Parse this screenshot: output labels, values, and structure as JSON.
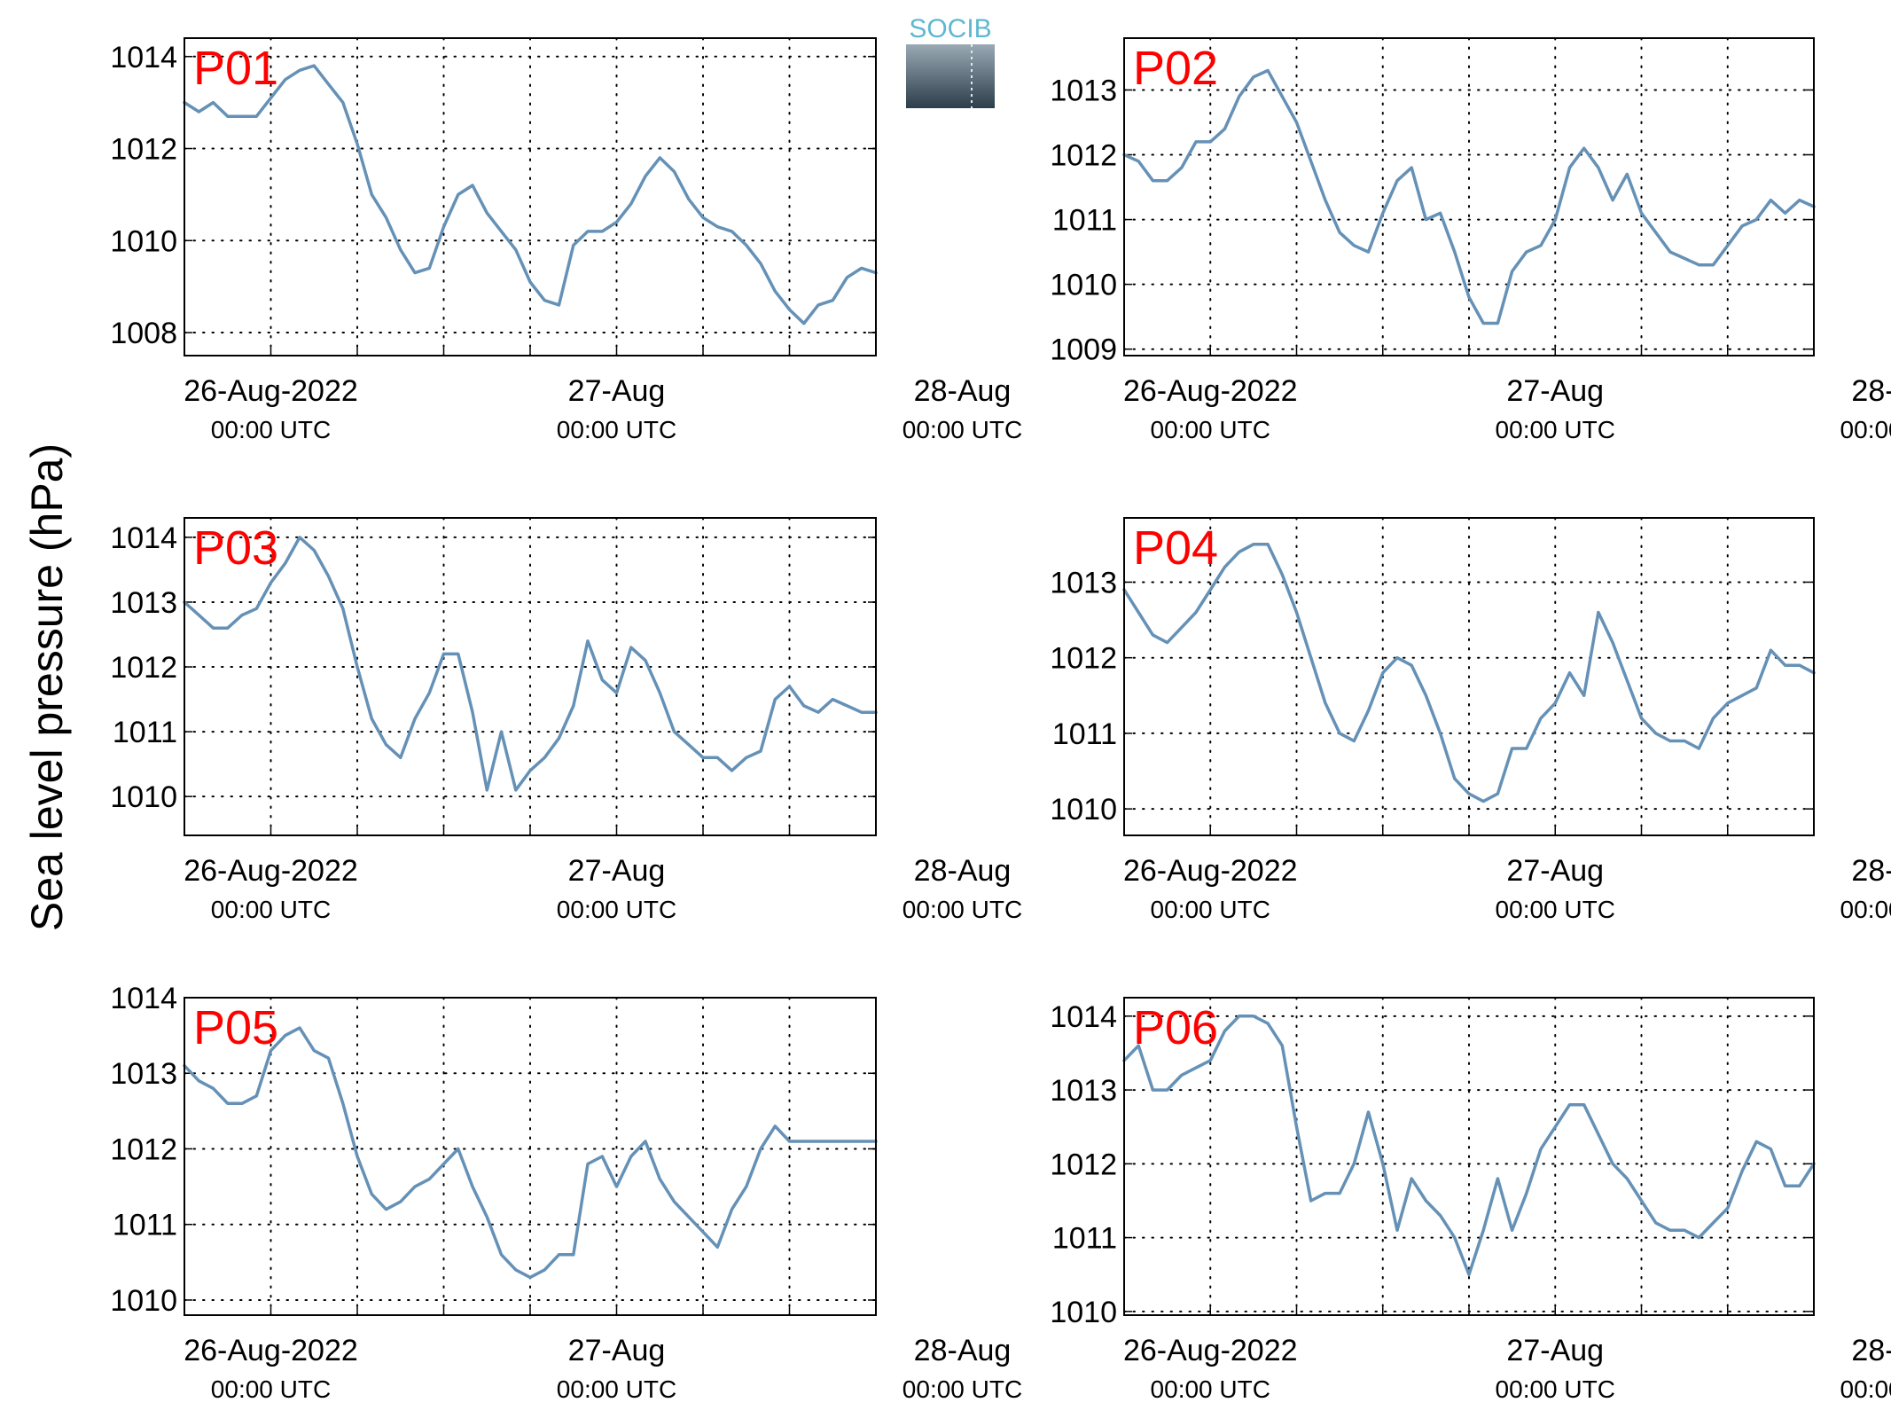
{
  "ylabel": "Sea level pressure (hPa)",
  "logo": {
    "text": "SOCIB",
    "text_color": "#5fb8d0"
  },
  "colors": {
    "line": "#6591b6",
    "panel_label": "#ff0000",
    "axis": "#000000",
    "grid": "#000000"
  },
  "x_ticks": {
    "major": [
      {
        "date": "26-Aug-2022",
        "time": "00:00 UTC"
      },
      {
        "date": "27-Aug",
        "time": "00:00 UTC"
      },
      {
        "date": "28-Aug",
        "time": "00:00 UTC"
      }
    ]
  },
  "chart_data": [
    {
      "type": "line",
      "name": "P01",
      "grid": "on",
      "ylim": [
        1007.5,
        1014.4
      ],
      "yticks": [
        1008,
        1010,
        1012,
        1014
      ],
      "x_units": "hours since 26-Aug-2022 00:00 UTC",
      "xlim": [
        -6,
        42
      ],
      "series": [
        {
          "x": [
            -6,
            -5,
            -4,
            -3,
            -2,
            -1,
            0,
            1,
            2,
            3,
            4,
            5,
            6,
            7,
            8,
            9,
            10,
            11,
            12,
            13,
            14,
            15,
            16,
            17,
            18,
            19,
            20,
            21,
            22,
            23,
            24,
            25,
            26,
            27,
            28,
            29,
            30,
            31,
            32,
            33,
            34,
            35,
            36,
            37,
            38,
            39,
            40,
            41,
            42
          ],
          "y": [
            1013.0,
            1012.8,
            1013.0,
            1012.7,
            1012.7,
            1012.7,
            1013.1,
            1013.5,
            1013.7,
            1013.8,
            1013.4,
            1013.0,
            1012.1,
            1011.0,
            1010.5,
            1009.8,
            1009.3,
            1009.4,
            1010.3,
            1011.0,
            1011.2,
            1010.6,
            1010.2,
            1009.8,
            1009.1,
            1008.7,
            1008.6,
            1009.9,
            1010.2,
            1010.2,
            1010.4,
            1010.8,
            1011.4,
            1011.8,
            1011.5,
            1010.9,
            1010.5,
            1010.3,
            1010.2,
            1009.9,
            1009.5,
            1008.9,
            1008.5,
            1008.2,
            1008.6,
            1008.7,
            1009.2,
            1009.4,
            1009.3
          ]
        }
      ]
    },
    {
      "type": "line",
      "name": "P02",
      "grid": "on",
      "ylim": [
        1008.9,
        1013.8
      ],
      "yticks": [
        1009,
        1010,
        1011,
        1012,
        1013
      ],
      "x_units": "hours since 26-Aug-2022 00:00 UTC",
      "xlim": [
        -6,
        42
      ],
      "series": [
        {
          "x": [
            -6,
            -5,
            -4,
            -3,
            -2,
            -1,
            0,
            1,
            2,
            3,
            4,
            5,
            6,
            7,
            8,
            9,
            10,
            11,
            12,
            13,
            14,
            15,
            16,
            17,
            18,
            19,
            20,
            21,
            22,
            23,
            24,
            25,
            26,
            27,
            28,
            29,
            30,
            31,
            32,
            33,
            34,
            35,
            36,
            37,
            38,
            39,
            40,
            41,
            42
          ],
          "y": [
            1012.0,
            1011.9,
            1011.6,
            1011.6,
            1011.8,
            1012.2,
            1012.2,
            1012.4,
            1012.9,
            1013.2,
            1013.3,
            1012.9,
            1012.5,
            1011.9,
            1011.3,
            1010.8,
            1010.6,
            1010.5,
            1011.1,
            1011.6,
            1011.8,
            1011.0,
            1011.1,
            1010.5,
            1009.8,
            1009.4,
            1009.4,
            1010.2,
            1010.5,
            1010.6,
            1011.0,
            1011.8,
            1012.1,
            1011.8,
            1011.3,
            1011.7,
            1011.1,
            1010.8,
            1010.5,
            1010.4,
            1010.3,
            1010.3,
            1010.6,
            1010.9,
            1011.0,
            1011.3,
            1011.1,
            1011.3,
            1011.2
          ]
        }
      ]
    },
    {
      "type": "line",
      "name": "P03",
      "grid": "on",
      "ylim": [
        1009.4,
        1014.3
      ],
      "yticks": [
        1010,
        1011,
        1012,
        1013,
        1014
      ],
      "x_units": "hours since 26-Aug-2022 00:00 UTC",
      "xlim": [
        -6,
        42
      ],
      "series": [
        {
          "x": [
            -6,
            -5,
            -4,
            -3,
            -2,
            -1,
            0,
            1,
            2,
            3,
            4,
            5,
            6,
            7,
            8,
            9,
            10,
            11,
            12,
            13,
            14,
            15,
            16,
            17,
            18,
            19,
            20,
            21,
            22,
            23,
            24,
            25,
            26,
            27,
            28,
            29,
            30,
            31,
            32,
            33,
            34,
            35,
            36,
            37,
            38,
            39,
            40,
            41,
            42
          ],
          "y": [
            1013.0,
            1012.8,
            1012.6,
            1012.6,
            1012.8,
            1012.9,
            1013.3,
            1013.6,
            1014.0,
            1013.8,
            1013.4,
            1012.9,
            1012.0,
            1011.2,
            1010.8,
            1010.6,
            1011.2,
            1011.6,
            1012.2,
            1012.2,
            1011.3,
            1010.1,
            1011.0,
            1010.1,
            1010.4,
            1010.6,
            1010.9,
            1011.4,
            1012.4,
            1011.8,
            1011.6,
            1012.3,
            1012.1,
            1011.6,
            1011.0,
            1010.8,
            1010.6,
            1010.6,
            1010.4,
            1010.6,
            1010.7,
            1011.5,
            1011.7,
            1011.4,
            1011.3,
            1011.5,
            1011.4,
            1011.3,
            1011.3
          ]
        }
      ]
    },
    {
      "type": "line",
      "name": "P04",
      "grid": "on",
      "ylim": [
        1009.65,
        1013.85
      ],
      "yticks": [
        1010,
        1011,
        1012,
        1013
      ],
      "x_units": "hours since 26-Aug-2022 00:00 UTC",
      "xlim": [
        -6,
        42
      ],
      "series": [
        {
          "x": [
            -6,
            -5,
            -4,
            -3,
            -2,
            -1,
            0,
            1,
            2,
            3,
            4,
            5,
            6,
            7,
            8,
            9,
            10,
            11,
            12,
            13,
            14,
            15,
            16,
            17,
            18,
            19,
            20,
            21,
            22,
            23,
            24,
            25,
            26,
            27,
            28,
            29,
            30,
            31,
            32,
            33,
            34,
            35,
            36,
            37,
            38,
            39,
            40,
            41,
            42
          ],
          "y": [
            1012.9,
            1012.6,
            1012.3,
            1012.2,
            1012.4,
            1012.6,
            1012.9,
            1013.2,
            1013.4,
            1013.5,
            1013.5,
            1013.1,
            1012.6,
            1012.0,
            1011.4,
            1011.0,
            1010.9,
            1011.3,
            1011.8,
            1012.0,
            1011.9,
            1011.5,
            1011.0,
            1010.4,
            1010.2,
            1010.1,
            1010.2,
            1010.8,
            1010.8,
            1011.2,
            1011.4,
            1011.8,
            1011.5,
            1012.6,
            1012.2,
            1011.7,
            1011.2,
            1011.0,
            1010.9,
            1010.9,
            1010.8,
            1011.2,
            1011.4,
            1011.5,
            1011.6,
            1012.1,
            1011.9,
            1011.9,
            1011.8
          ]
        }
      ]
    },
    {
      "type": "line",
      "name": "P05",
      "grid": "on",
      "ylim": [
        1009.8,
        1014.0
      ],
      "yticks": [
        1010,
        1011,
        1012,
        1013,
        1014
      ],
      "x_units": "hours since 26-Aug-2022 00:00 UTC",
      "xlim": [
        -6,
        42
      ],
      "series": [
        {
          "x": [
            -6,
            -5,
            -4,
            -3,
            -2,
            -1,
            0,
            1,
            2,
            3,
            4,
            5,
            6,
            7,
            8,
            9,
            10,
            11,
            12,
            13,
            14,
            15,
            16,
            17,
            18,
            19,
            20,
            21,
            22,
            23,
            24,
            25,
            26,
            27,
            28,
            29,
            30,
            31,
            32,
            33,
            34,
            35,
            36,
            37,
            38,
            39,
            40,
            41,
            42
          ],
          "y": [
            1013.1,
            1012.9,
            1012.8,
            1012.6,
            1012.6,
            1012.7,
            1013.3,
            1013.5,
            1013.6,
            1013.3,
            1013.2,
            1012.6,
            1011.9,
            1011.4,
            1011.2,
            1011.3,
            1011.5,
            1011.6,
            1011.8,
            1012.0,
            1011.5,
            1011.1,
            1010.6,
            1010.4,
            1010.3,
            1010.4,
            1010.6,
            1010.6,
            1011.8,
            1011.9,
            1011.5,
            1011.9,
            1012.1,
            1011.6,
            1011.3,
            1011.1,
            1010.9,
            1010.7,
            1011.2,
            1011.5,
            1012.0,
            1012.3,
            1012.1,
            1012.1,
            1012.1,
            1012.1,
            1012.1,
            1012.1,
            1012.1
          ]
        }
      ]
    },
    {
      "type": "line",
      "name": "P06",
      "grid": "on",
      "ylim": [
        1009.95,
        1014.25
      ],
      "yticks": [
        1010,
        1011,
        1012,
        1013,
        1014
      ],
      "x_units": "hours since 26-Aug-2022 00:00 UTC",
      "xlim": [
        -6,
        42
      ],
      "series": [
        {
          "x": [
            -6,
            -5,
            -4,
            -3,
            -2,
            -1,
            0,
            1,
            2,
            3,
            4,
            5,
            6,
            7,
            8,
            9,
            10,
            11,
            12,
            13,
            14,
            15,
            16,
            17,
            18,
            19,
            20,
            21,
            22,
            23,
            24,
            25,
            26,
            27,
            28,
            29,
            30,
            31,
            32,
            33,
            34,
            35,
            36,
            37,
            38,
            39,
            40,
            41,
            42
          ],
          "y": [
            1013.4,
            1013.6,
            1013.0,
            1013.0,
            1013.2,
            1013.3,
            1013.4,
            1013.8,
            1014.0,
            1014.0,
            1013.9,
            1013.6,
            1012.5,
            1011.5,
            1011.6,
            1011.6,
            1012.0,
            1012.7,
            1012.0,
            1011.1,
            1011.8,
            1011.5,
            1011.3,
            1011.0,
            1010.5,
            1011.1,
            1011.8,
            1011.1,
            1011.6,
            1012.2,
            1012.5,
            1012.8,
            1012.8,
            1012.4,
            1012.0,
            1011.8,
            1011.5,
            1011.2,
            1011.1,
            1011.1,
            1011.0,
            1011.2,
            1011.4,
            1011.9,
            1012.3,
            1012.2,
            1011.7,
            1011.7,
            1012.0
          ]
        }
      ]
    }
  ]
}
